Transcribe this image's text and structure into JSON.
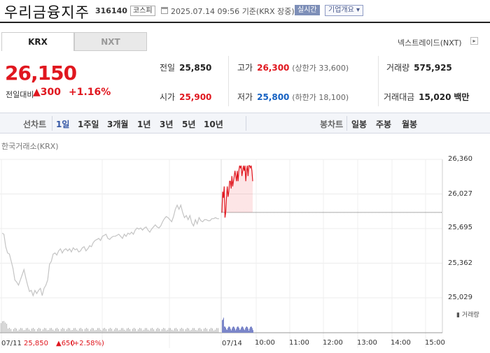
{
  "header": {
    "company_name": "우리금융지주",
    "code": "316140",
    "market": "코스피",
    "date": "2025.07.14 09:56",
    "basis": "기준(KRX 장중)",
    "live_badge": "실시간",
    "overview_button": "기업개요 ▾"
  },
  "tabs": {
    "krx": "KRX",
    "nxt": "NXT"
  },
  "nxt_link": "넥스트레이드(NXT)",
  "quote": {
    "price": "26,150",
    "change_label": "전일대비",
    "change_abs": "▲300",
    "change_pct": "+1.16%"
  },
  "stats": {
    "prev_close": {
      "label": "전일",
      "value": "25,850"
    },
    "high": {
      "label": "고가",
      "value": "26,300",
      "sub": "(상한가 33,600)"
    },
    "volume": {
      "label": "거래량",
      "value": "575,925"
    },
    "open": {
      "label": "시가",
      "value": "25,900"
    },
    "low": {
      "label": "저가",
      "value": "25,800",
      "sub": "(하한가 18,100)"
    },
    "amount": {
      "label": "거래대금",
      "value": "15,020",
      "unit": "백만"
    }
  },
  "chart_tabs": {
    "line_label": "선차트",
    "line_items": [
      "1일",
      "1주일",
      "3개월",
      "1년",
      "3년",
      "5년",
      "10년"
    ],
    "active": "1일",
    "candle_label": "봉차트",
    "candle_items": [
      "일봉",
      "주봉",
      "월봉"
    ]
  },
  "chart_data": {
    "type": "line",
    "source_label": "한국거래소(KRX)",
    "y_ticks": [
      "26,360",
      "26,027",
      "25,695",
      "25,362",
      "25,029"
    ],
    "ylim": [
      25029,
      26360
    ],
    "x_ticks": [
      "10:00",
      "11:00",
      "12:00",
      "13:00",
      "14:00",
      "15:00"
    ],
    "prev_close": 25850,
    "volume_legend": "거래량",
    "prev_day": {
      "date": "07/11",
      "close": "25,850",
      "change": "▲650",
      "pct": "(+2.58%)"
    },
    "today_date": "07/14",
    "series": [
      {
        "values": [
          25650,
          25640,
          25520,
          25460,
          25450,
          25380,
          25310,
          25200,
          25180,
          25150,
          25200,
          25250,
          25300,
          25220,
          25150,
          25090,
          25100,
          25050,
          25100,
          25070,
          25100,
          25120,
          25050,
          25120,
          25150,
          25200,
          25350,
          25380,
          25450,
          25460,
          25440,
          25480,
          25500,
          25460,
          25490,
          25500,
          25480,
          25500,
          25470,
          25510,
          25490,
          25500,
          25470,
          25480,
          25510,
          25520,
          25480,
          25500,
          25530,
          25520,
          25560,
          25580,
          25590,
          25600,
          25580,
          25620,
          25630,
          25640,
          25600,
          25590,
          25610,
          25620,
          25620,
          25630,
          25640,
          25620,
          25600,
          25640,
          25620,
          25650,
          25640,
          25660,
          25640,
          25680,
          25700,
          25690,
          25700,
          25680,
          25700,
          25710,
          25680,
          25660,
          25690,
          25710,
          25730,
          25710,
          25700,
          25720,
          25760,
          25790,
          25810,
          25800,
          25780,
          25760,
          25810,
          25880,
          25920,
          25880,
          25920,
          25850,
          25800,
          25820,
          25780,
          25820,
          25750,
          25720,
          25780,
          25740,
          25800,
          25770,
          25760,
          25780,
          25780,
          25770,
          25770,
          25790,
          25790,
          25800,
          25790,
          25790
        ]
      },
      {
        "values": [
          25850,
          26050,
          25990,
          26100,
          25800,
          25850,
          26000,
          26100,
          26000,
          26050,
          26150,
          26150,
          26080,
          26200,
          26100,
          26150,
          26200,
          26250,
          26200,
          26150,
          26250,
          26150,
          26250,
          26300,
          26280,
          26300,
          26200,
          26250,
          26300,
          26250,
          26300,
          26150,
          26250,
          26300,
          26200,
          26300,
          26300,
          26280,
          26300,
          26250,
          26150
        ]
      }
    ]
  }
}
